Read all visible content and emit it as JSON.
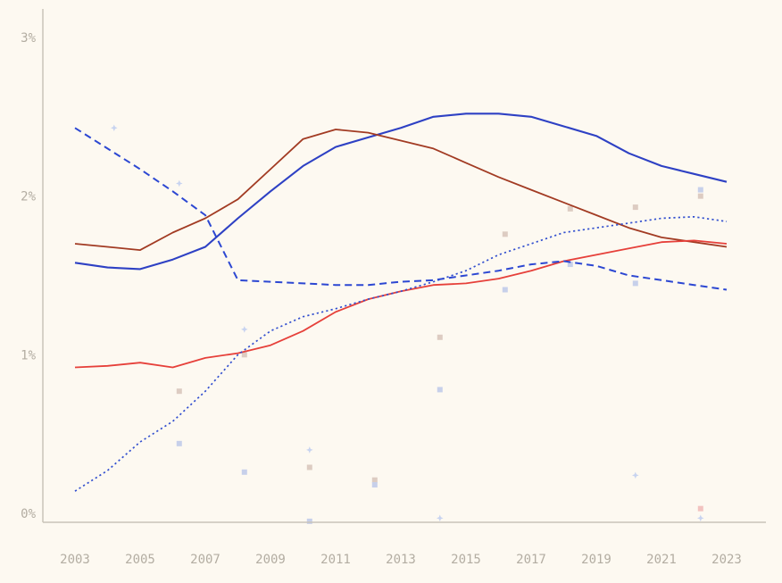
{
  "page": {
    "background_color": "#fdf9f1",
    "axis_line_color": "#c9c4b9",
    "tick_label_color": "#b3ada2"
  },
  "chart_data": {
    "type": "line",
    "title": "",
    "subtitle": "",
    "xlabel": "",
    "ylabel": "",
    "grid": false,
    "legend_position": "none",
    "x": [
      2003,
      2004,
      2005,
      2006,
      2007,
      2008,
      2009,
      2010,
      2011,
      2012,
      2013,
      2014,
      2015,
      2016,
      2017,
      2018,
      2019,
      2020,
      2021,
      2022,
      2023
    ],
    "xlim": [
      2003,
      2023
    ],
    "ylim": [
      0,
      3.2
    ],
    "yticks": [
      {
        "value": 3,
        "label": "3%"
      },
      {
        "value": 2,
        "label": "2%"
      },
      {
        "value": 1,
        "label": "1%"
      },
      {
        "value": 0,
        "label": "0%"
      }
    ],
    "xticks": [
      {
        "value": 2003,
        "label": "2003"
      },
      {
        "value": 2005,
        "label": "2005"
      },
      {
        "value": 2007,
        "label": "2007"
      },
      {
        "value": 2009,
        "label": "2009"
      },
      {
        "value": 2011,
        "label": "2011"
      },
      {
        "value": 2013,
        "label": "2013"
      },
      {
        "value": 2015,
        "label": "2015"
      },
      {
        "value": 2017,
        "label": "2017"
      },
      {
        "value": 2019,
        "label": "2019"
      },
      {
        "value": 2021,
        "label": "2021"
      },
      {
        "value": 2023,
        "label": "2023"
      }
    ],
    "series": [
      {
        "name": "blue-solid",
        "color": "#2e41c4",
        "style": "solid",
        "width": 2.1,
        "values": [
          1.58,
          1.55,
          1.54,
          1.6,
          1.68,
          1.86,
          2.03,
          2.19,
          2.31,
          2.37,
          2.43,
          2.5,
          2.52,
          2.52,
          2.5,
          2.44,
          2.38,
          2.27,
          2.19,
          2.14,
          2.09
        ]
      },
      {
        "name": "dark-red-solid",
        "color": "#a23b23",
        "style": "solid",
        "width": 1.8,
        "values": [
          1.7,
          1.68,
          1.66,
          1.77,
          1.86,
          1.98,
          2.17,
          2.36,
          2.42,
          2.4,
          2.35,
          2.3,
          2.21,
          2.12,
          2.04,
          1.96,
          1.88,
          1.8,
          1.74,
          1.71,
          1.68
        ]
      },
      {
        "name": "red-solid",
        "color": "#e6403a",
        "style": "solid",
        "width": 1.8,
        "values": [
          0.92,
          0.93,
          0.95,
          0.92,
          0.98,
          1.01,
          1.06,
          1.15,
          1.27,
          1.35,
          1.4,
          1.44,
          1.45,
          1.48,
          1.53,
          1.59,
          1.63,
          1.67,
          1.71,
          1.72,
          1.7
        ]
      },
      {
        "name": "blue-dashed",
        "color": "#2c47d2",
        "style": "dashed",
        "width": 2.0,
        "values": [
          2.43,
          2.3,
          2.17,
          2.03,
          1.88,
          1.47,
          1.46,
          1.45,
          1.44,
          1.44,
          1.46,
          1.47,
          1.5,
          1.53,
          1.57,
          1.59,
          1.56,
          1.5,
          1.47,
          1.44,
          1.41
        ]
      },
      {
        "name": "blue-dotted",
        "color": "#3350cf",
        "style": "dotted",
        "width": 1.7,
        "values": [
          0.14,
          0.27,
          0.45,
          0.58,
          0.77,
          1.0,
          1.15,
          1.24,
          1.29,
          1.35,
          1.4,
          1.46,
          1.53,
          1.63,
          1.7,
          1.77,
          1.8,
          1.83,
          1.86,
          1.87,
          1.84
        ]
      }
    ],
    "scatter": [
      {
        "name": "faint-light-blue-stars",
        "shape": "star",
        "color": "#c7d3f0",
        "points": [
          [
            2004.2,
            2.43
          ],
          [
            2006.2,
            2.08
          ],
          [
            2008.2,
            1.16
          ],
          [
            2010.2,
            0.4
          ],
          [
            2014.2,
            -0.03
          ],
          [
            2020.2,
            0.24
          ],
          [
            2022.2,
            -0.03
          ]
        ]
      },
      {
        "name": "faint-tan-squares",
        "shape": "square",
        "color": "#ddccc2",
        "points": [
          [
            2006.2,
            0.77
          ],
          [
            2008.2,
            1.0
          ],
          [
            2010.2,
            0.29
          ],
          [
            2012.2,
            0.21
          ],
          [
            2014.2,
            1.11
          ],
          [
            2016.2,
            1.76
          ],
          [
            2018.2,
            1.92
          ],
          [
            2020.2,
            1.93
          ],
          [
            2022.2,
            2.0
          ]
        ]
      },
      {
        "name": "faint-light-blue-squares",
        "shape": "square",
        "color": "#c7d0ea",
        "points": [
          [
            2006.2,
            0.44
          ],
          [
            2008.2,
            0.26
          ],
          [
            2010.2,
            -0.05
          ],
          [
            2012.2,
            0.18
          ],
          [
            2014.2,
            0.78
          ],
          [
            2016.2,
            1.41
          ],
          [
            2018.2,
            1.57
          ],
          [
            2020.2,
            1.45
          ],
          [
            2022.2,
            2.04
          ]
        ]
      },
      {
        "name": "faint-pink-squares",
        "shape": "square",
        "color": "#f2c3c0",
        "points": [
          [
            2022.2,
            0.03
          ]
        ]
      }
    ]
  }
}
